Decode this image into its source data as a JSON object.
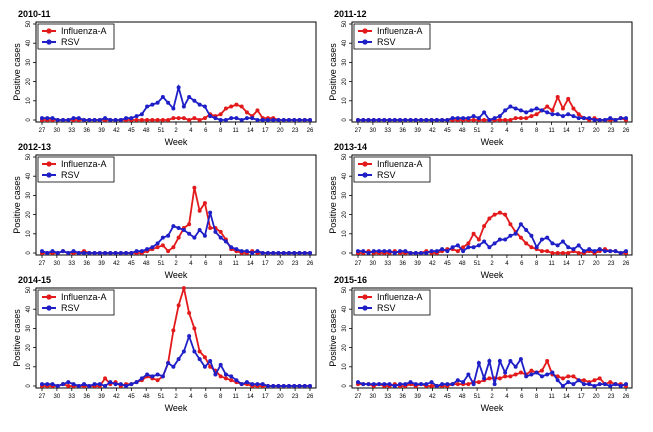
{
  "colors": {
    "influenza": "#e31a1c",
    "rsv": "#1f1fc8"
  },
  "chart_data": [
    {
      "type": "line",
      "title": "2010-11",
      "xlabel": "Week",
      "ylabel": "Positive cases",
      "ylim": [
        0,
        50
      ],
      "yticks": [
        "0",
        "10",
        "20",
        "30",
        "40",
        "50"
      ],
      "xticks": [
        "27",
        "30",
        "33",
        "36",
        "39",
        "42",
        "45",
        "48",
        "51",
        "2",
        "4",
        "6",
        "8",
        "11",
        "14",
        "17",
        "20",
        "23",
        "26"
      ],
      "legend": {
        "placement": "top-left",
        "entries": [
          "Influenza-A",
          "RSV"
        ]
      },
      "series": [
        {
          "name": "Influenza-A",
          "values": [
            0,
            0,
            0,
            0,
            0,
            0,
            0,
            0,
            0,
            0,
            0,
            0,
            0,
            0,
            0,
            0,
            0,
            0,
            0,
            0,
            0,
            0,
            0,
            0,
            0,
            1,
            1,
            1,
            0,
            1,
            0,
            1,
            3,
            2,
            3,
            6,
            7,
            8,
            7,
            4,
            2,
            5,
            1,
            1,
            1,
            0,
            0,
            0,
            0,
            0,
            0,
            0
          ]
        },
        {
          "name": "RSV",
          "values": [
            1,
            1,
            1,
            0,
            0,
            0,
            1,
            1,
            0,
            0,
            0,
            0,
            1,
            0,
            0,
            0,
            1,
            1,
            2,
            3,
            7,
            8,
            9,
            12,
            9,
            6,
            17,
            7,
            12,
            10,
            8,
            7,
            2,
            1,
            0,
            0,
            1,
            1,
            0,
            1,
            1,
            0,
            0,
            0,
            0,
            0,
            0,
            0,
            0,
            0,
            0,
            0
          ]
        }
      ]
    },
    {
      "type": "line",
      "title": "2011-12",
      "xlabel": "Week",
      "ylabel": "Positive cases",
      "ylim": [
        0,
        50
      ],
      "yticks": [
        "0",
        "10",
        "20",
        "30",
        "40",
        "50"
      ],
      "xticks": [
        "27",
        "30",
        "33",
        "36",
        "39",
        "42",
        "45",
        "48",
        "51",
        "2",
        "4",
        "6",
        "8",
        "11",
        "14",
        "17",
        "20",
        "23",
        "26"
      ],
      "legend": {
        "placement": "top-left",
        "entries": [
          "Influenza-A",
          "RSV"
        ]
      },
      "series": [
        {
          "name": "Influenza-A",
          "values": [
            0,
            0,
            0,
            0,
            0,
            0,
            0,
            0,
            0,
            0,
            0,
            0,
            0,
            0,
            0,
            0,
            0,
            0,
            0,
            0,
            0,
            0,
            0,
            0,
            0,
            0,
            0,
            0,
            0,
            0,
            1,
            1,
            1,
            2,
            3,
            5,
            7,
            5,
            12,
            6,
            11,
            6,
            3,
            1,
            0,
            1,
            0,
            0,
            0,
            0,
            1,
            0
          ]
        },
        {
          "name": "RSV",
          "values": [
            0,
            0,
            0,
            0,
            0,
            0,
            0,
            0,
            0,
            0,
            0,
            0,
            0,
            0,
            0,
            0,
            0,
            0,
            1,
            1,
            1,
            1,
            2,
            1,
            4,
            0,
            1,
            2,
            5,
            7,
            6,
            5,
            4,
            5,
            6,
            5,
            4,
            3,
            3,
            2,
            3,
            2,
            1,
            1,
            1,
            0,
            0,
            0,
            1,
            0,
            1,
            1
          ]
        }
      ]
    },
    {
      "type": "line",
      "title": "2012-13",
      "xlabel": "Week",
      "ylabel": "Positive cases",
      "ylim": [
        0,
        50
      ],
      "yticks": [
        "0",
        "10",
        "20",
        "30",
        "40",
        "50"
      ],
      "xticks": [
        "27",
        "30",
        "33",
        "36",
        "39",
        "42",
        "45",
        "48",
        "51",
        "2",
        "4",
        "6",
        "8",
        "11",
        "14",
        "17",
        "20",
        "23",
        "26"
      ],
      "legend": {
        "placement": "top-left",
        "entries": [
          "Influenza-A",
          "RSV"
        ]
      },
      "series": [
        {
          "name": "Influenza-A",
          "values": [
            0,
            0,
            0,
            0,
            1,
            0,
            0,
            0,
            1,
            0,
            0,
            0,
            0,
            0,
            0,
            0,
            0,
            0,
            0,
            0,
            1,
            2,
            3,
            4,
            1,
            3,
            8,
            13,
            15,
            34,
            22,
            26,
            13,
            13,
            11,
            7,
            2,
            1,
            0,
            0,
            1,
            0,
            0,
            0,
            0,
            0,
            0,
            0,
            0,
            0,
            0,
            0
          ]
        },
        {
          "name": "RSV",
          "values": [
            1,
            0,
            1,
            0,
            1,
            0,
            1,
            0,
            0,
            0,
            0,
            0,
            0,
            0,
            0,
            0,
            0,
            0,
            1,
            1,
            2,
            3,
            5,
            8,
            9,
            14,
            13,
            12,
            10,
            8,
            12,
            9,
            21,
            11,
            8,
            6,
            3,
            2,
            1,
            1,
            0,
            1,
            0,
            0,
            0,
            0,
            0,
            0,
            0,
            0,
            0,
            0
          ]
        }
      ]
    },
    {
      "type": "line",
      "title": "2013-14",
      "xlabel": "Week",
      "ylabel": "Positive cases",
      "ylim": [
        0,
        50
      ],
      "yticks": [
        "0",
        "10",
        "20",
        "30",
        "40",
        "50"
      ],
      "xticks": [
        "27",
        "30",
        "33",
        "36",
        "39",
        "42",
        "45",
        "48",
        "51",
        "2",
        "4",
        "6",
        "8",
        "11",
        "14",
        "17",
        "20",
        "23",
        "26"
      ],
      "legend": {
        "placement": "top-left",
        "entries": [
          "Influenza-A",
          "RSV"
        ]
      },
      "series": [
        {
          "name": "Influenza-A",
          "values": [
            0,
            0,
            1,
            0,
            0,
            0,
            0,
            1,
            0,
            0,
            0,
            0,
            0,
            1,
            0,
            0,
            1,
            2,
            2,
            1,
            3,
            5,
            10,
            7,
            14,
            18,
            20,
            21,
            20,
            15,
            11,
            8,
            5,
            3,
            2,
            1,
            1,
            0,
            0,
            0,
            0,
            1,
            0,
            0,
            1,
            0,
            1,
            2,
            1,
            1,
            0,
            0
          ]
        },
        {
          "name": "RSV",
          "values": [
            1,
            1,
            0,
            1,
            1,
            1,
            1,
            0,
            1,
            1,
            0,
            0,
            0,
            0,
            1,
            1,
            2,
            1,
            3,
            4,
            1,
            3,
            3,
            4,
            6,
            3,
            5,
            7,
            7,
            9,
            10,
            15,
            12,
            9,
            3,
            7,
            8,
            5,
            4,
            6,
            3,
            2,
            4,
            1,
            2,
            1,
            2,
            1,
            1,
            1,
            0,
            1
          ]
        }
      ]
    },
    {
      "type": "line",
      "title": "2014-15",
      "xlabel": "Week",
      "ylabel": "Positive cases",
      "ylim": [
        0,
        50
      ],
      "yticks": [
        "0",
        "10",
        "20",
        "30",
        "40",
        "50"
      ],
      "xticks": [
        "27",
        "30",
        "33",
        "36",
        "39",
        "42",
        "45",
        "48",
        "51",
        "2",
        "4",
        "6",
        "8",
        "11",
        "14",
        "17",
        "20",
        "23",
        "26"
      ],
      "legend": {
        "placement": "top-left",
        "entries": [
          "Influenza-A",
          "RSV"
        ]
      },
      "series": [
        {
          "name": "Influenza-A",
          "values": [
            0,
            0,
            0,
            0,
            1,
            0,
            0,
            0,
            0,
            0,
            0,
            0,
            4,
            1,
            2,
            0,
            1,
            1,
            2,
            3,
            5,
            4,
            3,
            5,
            12,
            29,
            42,
            51,
            38,
            30,
            18,
            15,
            10,
            8,
            5,
            4,
            3,
            2,
            1,
            1,
            0,
            0,
            0,
            0,
            0,
            0,
            0,
            0,
            0,
            0,
            0,
            0
          ]
        },
        {
          "name": "RSV",
          "values": [
            1,
            1,
            1,
            0,
            1,
            2,
            1,
            0,
            1,
            0,
            1,
            1,
            0,
            2,
            1,
            1,
            0,
            1,
            2,
            4,
            6,
            5,
            6,
            5,
            12,
            10,
            14,
            18,
            26,
            18,
            14,
            10,
            13,
            6,
            11,
            6,
            5,
            3,
            1,
            2,
            1,
            1,
            1,
            0,
            0,
            0,
            0,
            0,
            0,
            0,
            0,
            0
          ]
        }
      ]
    },
    {
      "type": "line",
      "title": "2015-16",
      "xlabel": "Week",
      "ylabel": "Positive cases",
      "ylim": [
        0,
        50
      ],
      "yticks": [
        "0",
        "10",
        "20",
        "30",
        "40",
        "50"
      ],
      "xticks": [
        "27",
        "30",
        "33",
        "36",
        "39",
        "42",
        "45",
        "48",
        "51",
        "2",
        "4",
        "6",
        "8",
        "11",
        "14",
        "17",
        "20",
        "23",
        "26"
      ],
      "legend": {
        "placement": "top-left",
        "entries": [
          "Influenza-A",
          "RSV"
        ]
      },
      "series": [
        {
          "name": "Influenza-A",
          "values": [
            1,
            1,
            1,
            0,
            1,
            0,
            0,
            1,
            0,
            0,
            1,
            0,
            1,
            0,
            0,
            0,
            0,
            0,
            1,
            1,
            1,
            1,
            2,
            2,
            3,
            4,
            4,
            4,
            5,
            5,
            6,
            7,
            6,
            8,
            7,
            8,
            13,
            6,
            5,
            4,
            5,
            5,
            3,
            3,
            2,
            3,
            4,
            1,
            2,
            1,
            1,
            0
          ]
        },
        {
          "name": "RSV",
          "values": [
            2,
            1,
            1,
            1,
            1,
            1,
            1,
            0,
            1,
            1,
            2,
            1,
            1,
            1,
            2,
            0,
            1,
            1,
            1,
            3,
            2,
            6,
            1,
            12,
            4,
            13,
            1,
            13,
            7,
            13,
            10,
            14,
            5,
            6,
            7,
            5,
            6,
            7,
            3,
            0,
            2,
            1,
            3,
            1,
            1,
            0,
            1,
            1,
            0,
            1,
            0,
            1
          ]
        }
      ]
    }
  ]
}
